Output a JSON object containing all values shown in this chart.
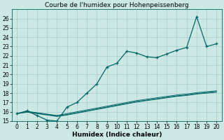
{
  "title": "Courbe de l'humidex pour Hohenpeissenberg",
  "xlabel": "Humidex (Indice chaleur)",
  "xlim": [
    -0.5,
    20.5
  ],
  "ylim": [
    15,
    27
  ],
  "yticks": [
    15,
    16,
    17,
    18,
    19,
    20,
    21,
    22,
    23,
    24,
    25,
    26
  ],
  "xticks": [
    0,
    1,
    2,
    3,
    4,
    5,
    6,
    7,
    8,
    9,
    10,
    11,
    12,
    13,
    14,
    15,
    16,
    17,
    18,
    19,
    20
  ],
  "bg_color": "#cce8e4",
  "grid_color": "#aacccc",
  "line_color": "#006666",
  "series_main": [
    15.8,
    16.1,
    15.6,
    15.1,
    15.0,
    16.5,
    17.0,
    18.0,
    19.0,
    20.8,
    21.2,
    22.5,
    22.3,
    21.9,
    21.8,
    22.2,
    22.6,
    22.9,
    26.2,
    23.0,
    23.3
  ],
  "series_flat1": [
    15.8,
    16.05,
    15.9,
    15.75,
    15.6,
    15.8,
    16.0,
    16.2,
    16.4,
    16.6,
    16.8,
    17.0,
    17.2,
    17.35,
    17.5,
    17.65,
    17.8,
    17.9,
    18.05,
    18.15,
    18.25
  ],
  "series_flat2": [
    15.8,
    16.0,
    15.85,
    15.7,
    15.55,
    15.7,
    15.9,
    16.1,
    16.3,
    16.5,
    16.7,
    16.9,
    17.1,
    17.25,
    17.4,
    17.55,
    17.7,
    17.8,
    17.95,
    18.05,
    18.15
  ],
  "series_flat3": [
    15.8,
    15.95,
    15.8,
    15.65,
    15.5,
    15.65,
    15.85,
    16.05,
    16.25,
    16.45,
    16.65,
    16.85,
    17.05,
    17.2,
    17.35,
    17.5,
    17.65,
    17.75,
    17.9,
    18.0,
    18.1
  ],
  "tick_fontsize": 5.5,
  "xlabel_fontsize": 6.5,
  "title_fontsize": 6.5
}
